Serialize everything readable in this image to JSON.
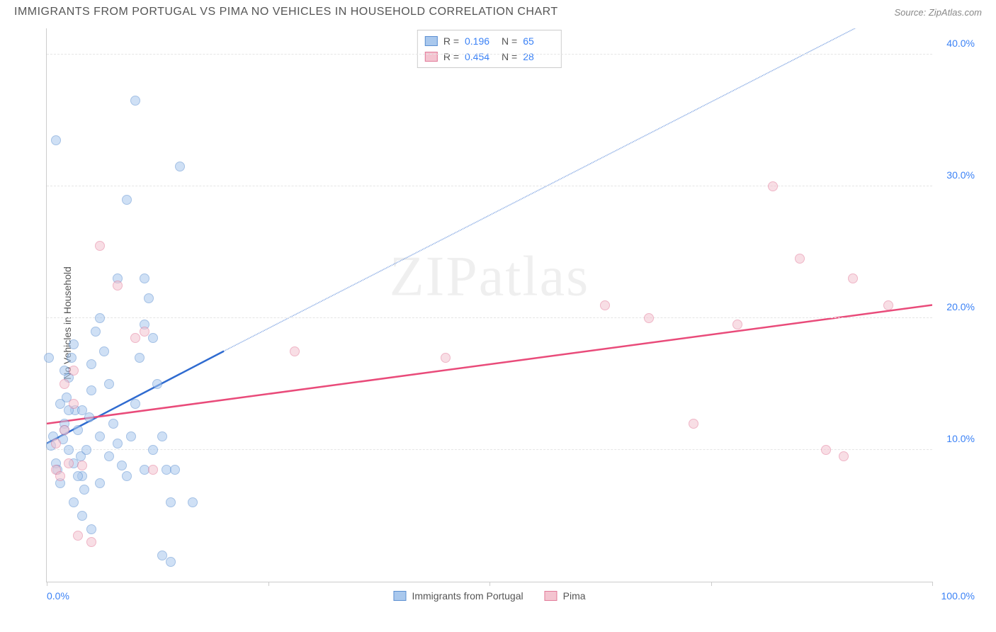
{
  "title": "IMMIGRANTS FROM PORTUGAL VS PIMA NO VEHICLES IN HOUSEHOLD CORRELATION CHART",
  "source": "Source: ZipAtlas.com",
  "y_axis_label": "No Vehicles in Household",
  "watermark": "ZIPatlas",
  "chart": {
    "type": "scatter",
    "background_color": "#ffffff",
    "grid_color": "#e5e5e5",
    "axis_color": "#cccccc",
    "tick_label_color": "#3b82f6",
    "xlim": [
      0,
      100
    ],
    "ylim": [
      0,
      42
    ],
    "y_ticks": [
      10,
      20,
      30,
      40
    ],
    "y_tick_labels": [
      "10.0%",
      "20.0%",
      "30.0%",
      "40.0%"
    ],
    "x_ticks": [
      0,
      25,
      50,
      75,
      100
    ],
    "x_tick_labels_ends": {
      "left": "0.0%",
      "right": "100.0%"
    },
    "point_radius": 7,
    "point_opacity": 0.55,
    "series": [
      {
        "name": "Immigrants from Portugal",
        "fill": "#a9c8ed",
        "stroke": "#5b8fd1",
        "trend_color": "#2f6bd0",
        "trend_width": 2.5,
        "trend": {
          "x1": 0,
          "y1": 10.5,
          "x2": 20,
          "y2": 17.5,
          "dash_to_x": 100,
          "dash_to_y": 45
        },
        "points": [
          [
            0.5,
            10.3
          ],
          [
            0.7,
            11.0
          ],
          [
            1.0,
            9.0
          ],
          [
            1.2,
            8.5
          ],
          [
            1.5,
            7.5
          ],
          [
            1.8,
            10.8
          ],
          [
            2.0,
            12.0
          ],
          [
            2.2,
            14.0
          ],
          [
            2.5,
            15.5
          ],
          [
            2.8,
            17.0
          ],
          [
            3.0,
            18.0
          ],
          [
            3.2,
            13.0
          ],
          [
            3.5,
            11.5
          ],
          [
            3.8,
            9.5
          ],
          [
            4.0,
            8.0
          ],
          [
            4.2,
            7.0
          ],
          [
            4.5,
            10.0
          ],
          [
            4.8,
            12.5
          ],
          [
            5.0,
            14.5
          ],
          [
            5.5,
            19.0
          ],
          [
            6.0,
            20.0
          ],
          [
            1.0,
            33.5
          ],
          [
            2.0,
            16.0
          ],
          [
            6.5,
            17.5
          ],
          [
            7.0,
            15.0
          ],
          [
            7.5,
            12.0
          ],
          [
            8.0,
            10.5
          ],
          [
            8.5,
            8.8
          ],
          [
            9.0,
            8.0
          ],
          [
            9.5,
            11.0
          ],
          [
            10.0,
            13.5
          ],
          [
            10.5,
            17.0
          ],
          [
            11.0,
            19.5
          ],
          [
            9.0,
            29.0
          ],
          [
            10.0,
            36.5
          ],
          [
            11.5,
            21.5
          ],
          [
            12.0,
            18.5
          ],
          [
            12.5,
            15.0
          ],
          [
            13.0,
            11.0
          ],
          [
            13.5,
            8.5
          ],
          [
            8.0,
            23.0
          ],
          [
            11.0,
            23.0
          ],
          [
            14.0,
            6.0
          ],
          [
            14.5,
            8.5
          ],
          [
            15.0,
            31.5
          ],
          [
            3.0,
            6.0
          ],
          [
            4.0,
            5.0
          ],
          [
            5.0,
            4.0
          ],
          [
            6.0,
            7.5
          ],
          [
            2.0,
            11.5
          ],
          [
            3.0,
            9.0
          ],
          [
            4.0,
            13.0
          ],
          [
            5.0,
            16.5
          ],
          [
            1.5,
            13.5
          ],
          [
            2.5,
            10.0
          ],
          [
            3.5,
            8.0
          ],
          [
            11.0,
            8.5
          ],
          [
            12.0,
            10.0
          ],
          [
            13.0,
            2.0
          ],
          [
            14.0,
            1.5
          ],
          [
            16.5,
            6.0
          ],
          [
            2.5,
            13.0
          ],
          [
            6.0,
            11.0
          ],
          [
            7.0,
            9.5
          ],
          [
            0.2,
            17.0
          ]
        ]
      },
      {
        "name": "Pima",
        "fill": "#f4c4d0",
        "stroke": "#e27a99",
        "trend_color": "#e94b7a",
        "trend_width": 2.5,
        "trend": {
          "x1": 0,
          "y1": 12.0,
          "x2": 100,
          "y2": 21.0
        },
        "points": [
          [
            1.0,
            8.5
          ],
          [
            1.5,
            8.0
          ],
          [
            2.0,
            15.0
          ],
          [
            2.5,
            9.0
          ],
          [
            3.0,
            16.0
          ],
          [
            3.5,
            3.5
          ],
          [
            4.0,
            8.8
          ],
          [
            5.0,
            3.0
          ],
          [
            6.0,
            25.5
          ],
          [
            8.0,
            22.5
          ],
          [
            10.0,
            18.5
          ],
          [
            11.0,
            19.0
          ],
          [
            12.0,
            8.5
          ],
          [
            28.0,
            17.5
          ],
          [
            45.0,
            17.0
          ],
          [
            63.0,
            21.0
          ],
          [
            68.0,
            20.0
          ],
          [
            73.0,
            12.0
          ],
          [
            78.0,
            19.5
          ],
          [
            82.0,
            30.0
          ],
          [
            85.0,
            24.5
          ],
          [
            88.0,
            10.0
          ],
          [
            90.0,
            9.5
          ],
          [
            91.0,
            23.0
          ],
          [
            95.0,
            21.0
          ],
          [
            1.0,
            10.5
          ],
          [
            2.0,
            11.5
          ],
          [
            3.0,
            13.5
          ]
        ]
      }
    ]
  },
  "stats": {
    "rows": [
      {
        "swatch_fill": "#a9c8ed",
        "swatch_stroke": "#5b8fd1",
        "r_label": "R =",
        "r": "0.196",
        "n_label": "N =",
        "n": "65"
      },
      {
        "swatch_fill": "#f4c4d0",
        "swatch_stroke": "#e27a99",
        "r_label": "R =",
        "r": "0.454",
        "n_label": "N =",
        "n": "28"
      }
    ]
  },
  "x_legend": [
    {
      "swatch_fill": "#a9c8ed",
      "swatch_stroke": "#5b8fd1",
      "label": "Immigrants from Portugal"
    },
    {
      "swatch_fill": "#f4c4d0",
      "swatch_stroke": "#e27a99",
      "label": "Pima"
    }
  ]
}
